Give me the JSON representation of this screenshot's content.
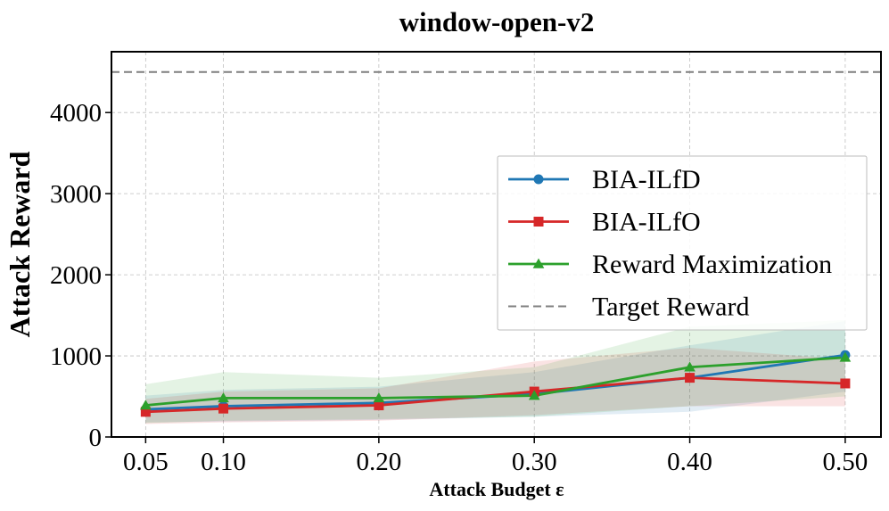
{
  "chart_data": {
    "type": "line",
    "title": "window-open-v2",
    "xlabel": "Attack Budget ε",
    "ylabel": "Attack Reward",
    "x": [
      0.05,
      0.1,
      0.2,
      0.3,
      0.4,
      0.5
    ],
    "x_tick_labels": [
      "0.05",
      "0.10",
      "0.20",
      "0.30",
      "0.40",
      "0.50"
    ],
    "y_ticks": [
      0,
      1000,
      2000,
      3000,
      4000
    ],
    "y_tick_labels": [
      "0",
      "1000",
      "2000",
      "3000",
      "4000"
    ],
    "xlim": [
      0.028,
      0.523
    ],
    "ylim": [
      0,
      4750
    ],
    "grid": true,
    "legend_position": "center-right",
    "series": [
      {
        "name": "BIA-ILfD",
        "color": "#1f77b4",
        "marker": "circle",
        "values": [
          340,
          380,
          420,
          530,
          730,
          1010
        ],
        "band_lower": [
          180,
          190,
          210,
          250,
          310,
          560
        ],
        "band_upper": [
          510,
          580,
          620,
          800,
          1130,
          1430
        ]
      },
      {
        "name": "BIA-ILfO",
        "color": "#d62728",
        "marker": "square",
        "values": [
          310,
          350,
          390,
          560,
          730,
          660
        ],
        "band_lower": [
          160,
          180,
          200,
          270,
          380,
          380
        ],
        "band_upper": [
          470,
          560,
          600,
          930,
          1100,
          960
        ]
      },
      {
        "name": "Reward Maximization",
        "color": "#2ca02c",
        "marker": "triangle",
        "values": [
          390,
          480,
          480,
          510,
          860,
          980
        ],
        "band_lower": [
          170,
          200,
          220,
          250,
          380,
          500
        ],
        "band_upper": [
          650,
          800,
          730,
          860,
          1360,
          1440
        ]
      }
    ],
    "reference_line": {
      "name": "Target Reward",
      "value": 4500,
      "color": "#7f7f7f",
      "style": "dashed"
    }
  }
}
